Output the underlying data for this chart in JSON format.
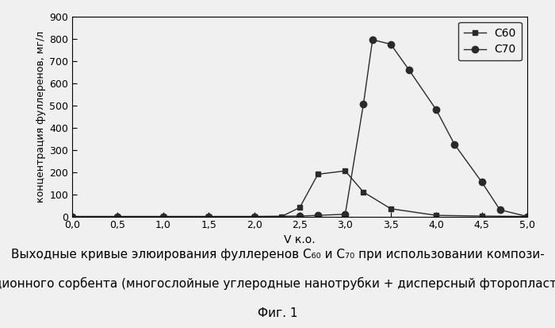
{
  "c60_x": [
    0.0,
    0.5,
    1.0,
    1.5,
    2.0,
    2.3,
    2.5,
    2.7,
    3.0,
    3.2,
    3.5,
    4.0,
    4.5,
    5.0
  ],
  "c60_y": [
    0,
    0,
    0,
    0,
    0,
    0,
    40,
    190,
    205,
    110,
    35,
    5,
    2,
    0
  ],
  "c70_x": [
    0.0,
    0.5,
    1.0,
    1.5,
    2.0,
    2.5,
    2.7,
    3.0,
    3.2,
    3.3,
    3.5,
    3.7,
    4.0,
    4.2,
    4.5,
    4.7,
    5.0
  ],
  "c70_y": [
    0,
    0,
    0,
    0,
    0,
    2,
    5,
    10,
    505,
    795,
    775,
    660,
    480,
    325,
    155,
    30,
    0
  ],
  "xlim": [
    0.0,
    5.0
  ],
  "ylim": [
    0,
    900
  ],
  "xticks": [
    0.0,
    0.5,
    1.0,
    1.5,
    2.0,
    2.5,
    3.0,
    3.5,
    4.0,
    4.5,
    5.0
  ],
  "yticks": [
    0,
    100,
    200,
    300,
    400,
    500,
    600,
    700,
    800,
    900
  ],
  "xlabel": "V к.о.",
  "ylabel": "концентрация фуллеренов, мг/л",
  "legend_c60": "С60",
  "legend_c70": "С70",
  "line_color": "#2a2a2a",
  "bg_color": "#f0f0f0",
  "caption_line1": "Выходные кривые элюирования фуллеренов С₆₀ и С₇₀ при использовании компози-",
  "caption_line2": "ционного сорбента (многослойные углеродные нанотрубки + дисперсный фторопласт)",
  "caption_line3": "Фиг. 1",
  "plot_fontsize": 9,
  "caption_fontsize": 11,
  "legend_fontsize": 10
}
